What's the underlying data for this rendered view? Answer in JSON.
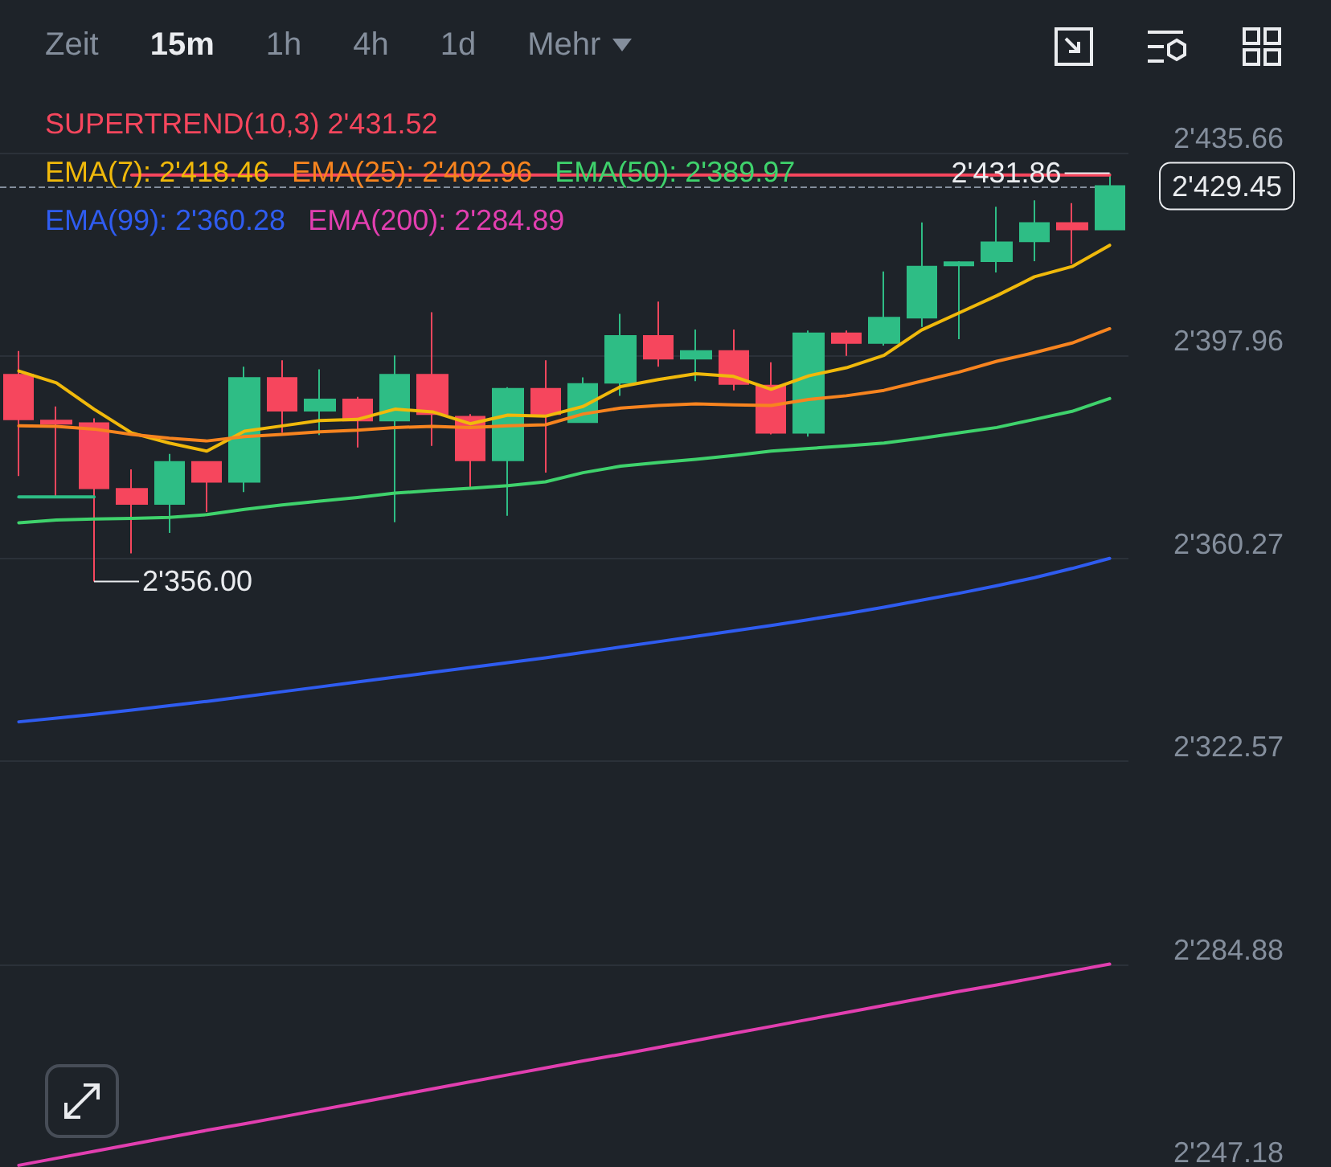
{
  "chart_data": {
    "type": "candlestick",
    "categories": [
      null,
      null,
      null,
      null,
      null,
      null,
      null,
      null,
      null,
      null,
      null,
      null,
      null,
      null,
      null,
      null,
      null,
      null,
      null,
      null,
      null,
      null,
      null,
      null,
      null,
      null,
      null,
      null,
      null,
      null
    ],
    "ohlc": [
      [
        2394.4,
        2398.8,
        2375.6,
        2386.1
      ],
      [
        2385.9,
        2388.5,
        2371.7,
        2385.3
      ],
      [
        2385.4,
        2386.3,
        2356.0,
        2373.3
      ],
      [
        2373.2,
        2376.8,
        2361.2,
        2370.4
      ],
      [
        2370.4,
        2379.7,
        2365.0,
        2378.2
      ],
      [
        2378.2,
        2378.2,
        2368.9,
        2374.5
      ],
      [
        2374.5,
        2395.9,
        2372.6,
        2393.8
      ],
      [
        2393.8,
        2397.1,
        2383.6,
        2387.7
      ],
      [
        2387.7,
        2395.4,
        2383.2,
        2389.8
      ],
      [
        2389.8,
        2390.3,
        2380.9,
        2385.9
      ],
      [
        2385.9,
        2398.0,
        2367.0,
        2394.4
      ],
      [
        2394.4,
        2406.0,
        2381.2,
        2387.1
      ],
      [
        2386.6,
        2387.1,
        2373.5,
        2378.5
      ],
      [
        2378.5,
        2392.1,
        2368.2,
        2391.8
      ],
      [
        2391.8,
        2397.1,
        2376.2,
        2387.1
      ],
      [
        2385.6,
        2393.9,
        2385.6,
        2392.7
      ],
      [
        2392.9,
        2405.7,
        2390.5,
        2401.6
      ],
      [
        2401.6,
        2408.0,
        2395.9,
        2397.4
      ],
      [
        2397.4,
        2402.8,
        2393.2,
        2398.8
      ],
      [
        2398.8,
        2402.8,
        2391.5,
        2392.7
      ],
      [
        2392.4,
        2396.7,
        2383.3,
        2383.6
      ],
      [
        2383.6,
        2402.6,
        2382.9,
        2402.1
      ],
      [
        2402.1,
        2402.6,
        2397.9,
        2400.3
      ],
      [
        2400.3,
        2413.6,
        2399.8,
        2405.0
      ],
      [
        2405.0,
        2422.7,
        2403.3,
        2414.5
      ],
      [
        2414.7,
        2415.5,
        2401.0,
        2415.3
      ],
      [
        2415.5,
        2425.6,
        2413.4,
        2419.0
      ],
      [
        2419.2,
        2426.8,
        2415.5,
        2422.6
      ],
      [
        2422.6,
        2426.3,
        2415.0,
        2421.4
      ],
      [
        2421.4,
        2431.86,
        2421.4,
        2429.45
      ]
    ],
    "colors": [
      "#f6465d",
      "#f6465d",
      "#f6465d",
      "#f6465d",
      "#2ebd85",
      "#f6465d",
      "#2ebd85",
      "#f6465d",
      "#2ebd85",
      "#f6465d",
      "#2ebd85",
      "#f6465d",
      "#f6465d",
      "#2ebd85",
      "#f6465d",
      "#2ebd85",
      "#2ebd85",
      "#f6465d",
      "#2ebd85",
      "#f6465d",
      "#f6465d",
      "#2ebd85",
      "#f6465d",
      "#2ebd85",
      "#2ebd85",
      "#2ebd85",
      "#2ebd85",
      "#2ebd85",
      "#f6465d",
      "#2ebd85"
    ],
    "series": [
      {
        "type": "line",
        "color": "#2ebd85",
        "values": [
          2371.7,
          2371.7,
          2371.7,
          null,
          null,
          null,
          null,
          null,
          null,
          null,
          null,
          null,
          null,
          null,
          null,
          null,
          null,
          null,
          null,
          null,
          null,
          null,
          null,
          null,
          null,
          null,
          null,
          null,
          null,
          null
        ]
      },
      {
        "type": "line",
        "name": "SUPERTREND(10,3)",
        "color": "#f6465d",
        "values": [
          null,
          null,
          null,
          2431.52,
          2431.52,
          2431.52,
          2431.52,
          2431.52,
          2431.52,
          2431.52,
          2431.52,
          2431.52,
          2431.52,
          2431.52,
          2431.52,
          2431.52,
          2431.52,
          2431.52,
          2431.52,
          2431.52,
          2431.52,
          2431.52,
          2431.52,
          2431.52,
          2431.52,
          2431.52,
          2431.52,
          2431.52,
          2431.52,
          2431.52
        ]
      },
      {
        "type": "line",
        "name": "EMA(7):",
        "color": "#f0b90b",
        "values": [
          2395.1,
          2392.9,
          2388.0,
          2383.6,
          2381.7,
          2380.2,
          2383.9,
          2384.9,
          2385.9,
          2386.1,
          2388.0,
          2387.5,
          2385.3,
          2386.9,
          2386.7,
          2388.5,
          2392.2,
          2393.5,
          2394.6,
          2394.1,
          2391.7,
          2394.2,
          2395.7,
          2398.0,
          2402.7,
          2405.9,
          2409.1,
          2412.6,
          2414.5,
          2418.46
        ]
      },
      {
        "type": "line",
        "name": "EMA(25):",
        "color": "#f7841f",
        "values": [
          2384.9,
          2384.8,
          2384.3,
          2383.3,
          2382.6,
          2382.1,
          2382.9,
          2383.3,
          2383.8,
          2384.1,
          2384.6,
          2384.8,
          2384.6,
          2384.9,
          2385.1,
          2387.1,
          2388.2,
          2388.7,
          2389.0,
          2388.8,
          2388.7,
          2389.8,
          2390.5,
          2391.5,
          2393.2,
          2394.9,
          2396.9,
          2398.5,
          2400.3,
          2402.96
        ]
      },
      {
        "type": "line",
        "name": "EMA(50):",
        "color": "#3fd26c",
        "values": [
          2366.9,
          2367.4,
          2367.6,
          2367.7,
          2367.9,
          2368.4,
          2369.4,
          2370.2,
          2370.9,
          2371.6,
          2372.4,
          2372.9,
          2373.3,
          2373.8,
          2374.5,
          2376.2,
          2377.4,
          2378.1,
          2378.7,
          2379.4,
          2380.2,
          2380.7,
          2381.2,
          2381.7,
          2382.6,
          2383.6,
          2384.6,
          2386.1,
          2387.6,
          2389.97
        ]
      },
      {
        "type": "line",
        "name": "EMA(99):",
        "color": "#2f5cf0",
        "values": [
          2329.9,
          2330.6,
          2331.3,
          2332.1,
          2332.9,
          2333.7,
          2334.6,
          2335.5,
          2336.4,
          2337.3,
          2338.2,
          2339.1,
          2340.0,
          2340.9,
          2341.8,
          2342.8,
          2343.8,
          2344.8,
          2345.8,
          2346.8,
          2347.8,
          2348.9,
          2350.0,
          2351.2,
          2352.5,
          2353.8,
          2355.2,
          2356.7,
          2358.4,
          2360.28
        ]
      },
      {
        "type": "line",
        "name": "EMA(200):",
        "color": "#e23fb0",
        "values": [
          2247.5,
          2248.8,
          2250.1,
          2251.4,
          2252.7,
          2254.0,
          2255.2,
          2256.5,
          2257.8,
          2259.1,
          2260.4,
          2261.7,
          2263.0,
          2264.3,
          2265.6,
          2266.9,
          2268.1,
          2269.4,
          2270.7,
          2272.0,
          2273.3,
          2274.6,
          2275.9,
          2277.2,
          2278.5,
          2279.8,
          2281.0,
          2282.3,
          2283.6,
          2284.89
        ]
      }
    ],
    "ylim": [
      2247.18,
      2435.66
    ],
    "yticks": [
      {
        "value": 2247.18,
        "label": "2'247.18"
      },
      {
        "value": 2284.88,
        "label": "2'284.88"
      },
      {
        "value": 2322.57,
        "label": "2'322.57"
      },
      {
        "value": 2360.27,
        "label": "2'360.27"
      },
      {
        "value": 2397.96,
        "label": "2'397.96"
      },
      {
        "value": 2435.66,
        "label": "2'435.66"
      }
    ],
    "tick_labels": "y",
    "grid": "y",
    "ref_lines": [
      {
        "axis": "y",
        "value": 2429.45,
        "label": "2'429.45",
        "line_style": "dashed",
        "color": "#848e9c"
      }
    ],
    "annotations": [
      "Zeit",
      "15m",
      "1h",
      "4h",
      "1d",
      "Mehr",
      "2'431.52",
      "2'418.46",
      "2'402.96",
      "2'389.97",
      "2'360.28",
      "2'284.89",
      "2'356.00",
      "2'431.86"
    ]
  }
}
